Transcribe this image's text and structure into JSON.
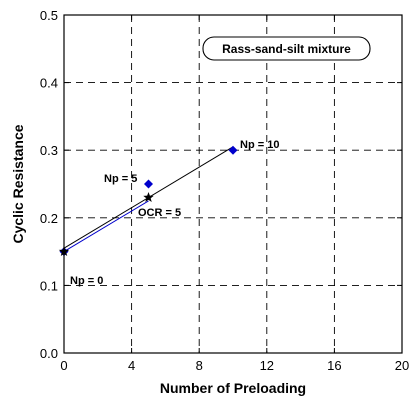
{
  "chart_data": {
    "type": "scatter",
    "title": "",
    "xlabel": "Number of Preloading",
    "ylabel": "Cyclic Resistance",
    "xlim": [
      0,
      20
    ],
    "ylim": [
      0,
      0.5
    ],
    "xticks": [
      0,
      4,
      8,
      12,
      16,
      20
    ],
    "xtick_labels": [
      "0",
      "4",
      "8",
      "12",
      "16",
      "20"
    ],
    "yticks": [
      0,
      0.1,
      0.2,
      0.3,
      0.4,
      0.5
    ],
    "ytick_labels": [
      "0.0",
      "0.1",
      "0.2",
      "0.3",
      "0.4",
      "0.5"
    ],
    "grid": true,
    "grid_style": "dashed",
    "legend": {
      "text": "Rass-sand-silt mixture",
      "placement": "top-right"
    },
    "series": [
      {
        "marker": "diamond",
        "color": "#0000cc",
        "x": [
          0,
          5,
          10
        ],
        "y": [
          0.15,
          0.25,
          0.3
        ]
      },
      {
        "marker": "star",
        "color": "#000000",
        "x": [
          0,
          5
        ],
        "y": [
          0.15,
          0.23
        ]
      }
    ],
    "lines": [
      {
        "color": "#000000",
        "x": [
          0,
          10
        ],
        "y": [
          0.155,
          0.305
        ]
      },
      {
        "color": "#0000cc",
        "x": [
          0,
          5
        ],
        "y": [
          0.15,
          0.225
        ]
      }
    ],
    "annotations": [
      {
        "text": "Np = 0",
        "x": 0,
        "y": 0.15
      },
      {
        "text": "Np = 5",
        "x": 5,
        "y": 0.25
      },
      {
        "text": "Np = 10",
        "x": 10,
        "y": 0.3
      },
      {
        "text": "OCR = 5",
        "x": 5,
        "y": 0.23
      }
    ]
  }
}
